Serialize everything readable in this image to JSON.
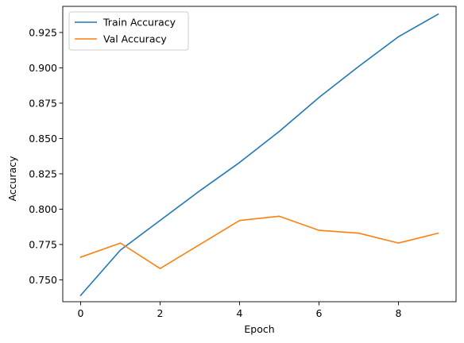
{
  "chart_data": {
    "type": "line",
    "xlabel": "Epoch",
    "ylabel": "Accuracy",
    "xlim": [
      -0.45,
      9.45
    ],
    "ylim": [
      0.7345,
      0.9435
    ],
    "xticks": [
      0,
      2,
      4,
      6,
      8
    ],
    "yticks": [
      0.75,
      0.775,
      0.8,
      0.825,
      0.85,
      0.875,
      0.9,
      0.925
    ],
    "ytick_labels": [
      "0.750",
      "0.775",
      "0.800",
      "0.825",
      "0.850",
      "0.875",
      "0.900",
      "0.925"
    ],
    "grid": false,
    "legend_position": "top-left",
    "x": [
      0,
      1,
      2,
      3,
      4,
      5,
      6,
      7,
      8,
      9
    ],
    "series": [
      {
        "name": "Train Accuracy",
        "color": "#1f77b4",
        "values": [
          0.739,
          0.771,
          0.792,
          0.813,
          0.833,
          0.855,
          0.879,
          0.901,
          0.922,
          0.938
        ]
      },
      {
        "name": "Val Accuracy",
        "color": "#ff7f0e",
        "values": [
          0.766,
          0.776,
          0.758,
          0.775,
          0.792,
          0.795,
          0.785,
          0.783,
          0.776,
          0.783
        ]
      }
    ]
  }
}
